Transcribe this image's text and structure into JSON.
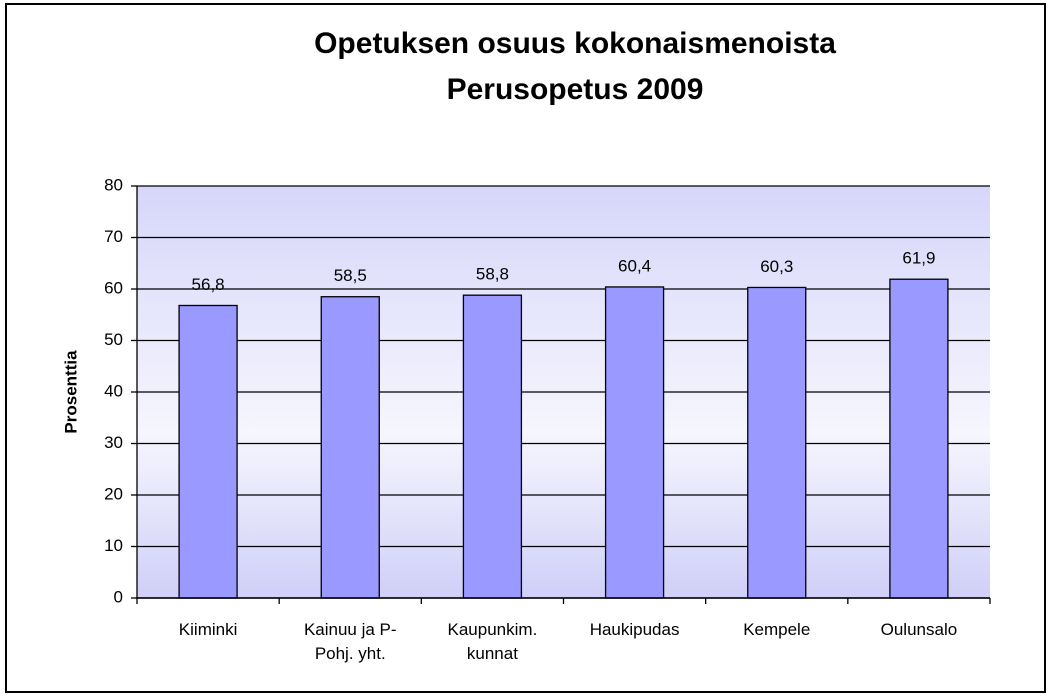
{
  "chart_data": {
    "type": "bar",
    "title": [
      "Opetuksen osuus kokonaismenoista",
      "Perusopetus 2009"
    ],
    "y_label": "Prosenttia",
    "categories": [
      "Kiiminki",
      "Kainuu ja P-Pohj. yht.",
      "Kaupunkim. kunnat",
      "Haukipudas",
      "Kempele",
      "Oulunsalo"
    ],
    "values": [
      56.8,
      58.5,
      58.8,
      60.4,
      60.3,
      61.9
    ],
    "value_labels": [
      "56,8",
      "58,5",
      "58,8",
      "60,4",
      "60,3",
      "61,9"
    ],
    "color": "#9999ff",
    "ylim": [
      0,
      80
    ],
    "yticks": [
      0,
      10,
      20,
      30,
      40,
      50,
      60,
      70,
      80
    ],
    "grid": true
  }
}
